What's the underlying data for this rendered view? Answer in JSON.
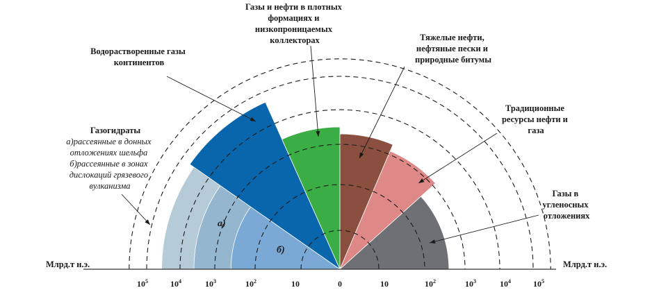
{
  "chart_data": {
    "type": "polar-area",
    "axis_unit_left": "Млрд.т н.э.",
    "axis_unit_right": "Млрд.т н.э.",
    "axis_scale": "log",
    "ticks_left": [
      {
        "base": "10",
        "exp": "5"
      },
      {
        "base": "10",
        "exp": "4"
      },
      {
        "base": "10",
        "exp": "3"
      },
      {
        "base": "10",
        "exp": "2"
      },
      {
        "base": "10",
        "exp": ""
      },
      {
        "base": "0",
        "exp": ""
      }
    ],
    "ticks_right": [
      {
        "base": "10",
        "exp": ""
      },
      {
        "base": "10",
        "exp": "2"
      },
      {
        "base": "10",
        "exp": "3"
      },
      {
        "base": "10",
        "exp": "4"
      },
      {
        "base": "10",
        "exp": "5"
      }
    ],
    "sectors": [
      {
        "id": "gas-hydrates-a",
        "label_lines": [],
        "value_log10": 4.55,
        "color": "#b6cbd8",
        "a0": 180,
        "a1": 135
      },
      {
        "id": "gas-hydrates-b",
        "label_lines": [],
        "value_log10": 3.6,
        "color": "#95b6cf",
        "a0": 180,
        "a1": 145
      },
      {
        "id": "gas-hydrates-c",
        "label_lines": [],
        "value_log10": 2.6,
        "color": "#7aa9d6",
        "a0": 180,
        "a1": 145
      },
      {
        "id": "dissolved-gas",
        "label_lines": [],
        "value_log10": 4.7,
        "color": "#0a66ac",
        "a0": 145,
        "a1": 114
      },
      {
        "id": "tight-formations",
        "label_lines": [],
        "value_log10": 3.5,
        "color": "#3aad44",
        "a0": 114,
        "a1": 90
      },
      {
        "id": "heavy-oil",
        "label_lines": [],
        "value_log10": 3.3,
        "color": "#8b4f3f",
        "a0": 90,
        "a1": 67
      },
      {
        "id": "traditional",
        "label_lines": [],
        "value_log10": 3.1,
        "color": "#de8887",
        "a0": 67,
        "a1": 42
      },
      {
        "id": "coal-gas",
        "label_lines": [],
        "value_log10": 2.6,
        "color": "#6e7075",
        "a0": 42,
        "a1": 0
      }
    ],
    "outer_circle_log10": 5.6,
    "dashed_rings_log10": [
      1,
      2,
      3,
      4,
      5
    ]
  },
  "labels": {
    "tight": [
      "Газы и нефти в плотных",
      "формациях и",
      "низкопроницаемых",
      "коллекторах"
    ],
    "dissolved": [
      "Водорастворенные газы",
      "континентов"
    ],
    "heavy": [
      "Тяжелые нефти,",
      "нефтяные пески и",
      "природные битумы"
    ],
    "traditional": [
      "Традиционные",
      "ресурсы нефти и",
      "газа"
    ],
    "coal": [
      "Газы в",
      "угленосных",
      "отложениях"
    ],
    "hydrates_title": "Газогидраты",
    "hydrates_notes": [
      "а)рассеянные в донных",
      "отложениях шельфа",
      "б)рассеянные в зонах",
      "дислокаций грязевого",
      "вулканизма"
    ],
    "inner_a": "а)",
    "inner_b": "б)"
  }
}
